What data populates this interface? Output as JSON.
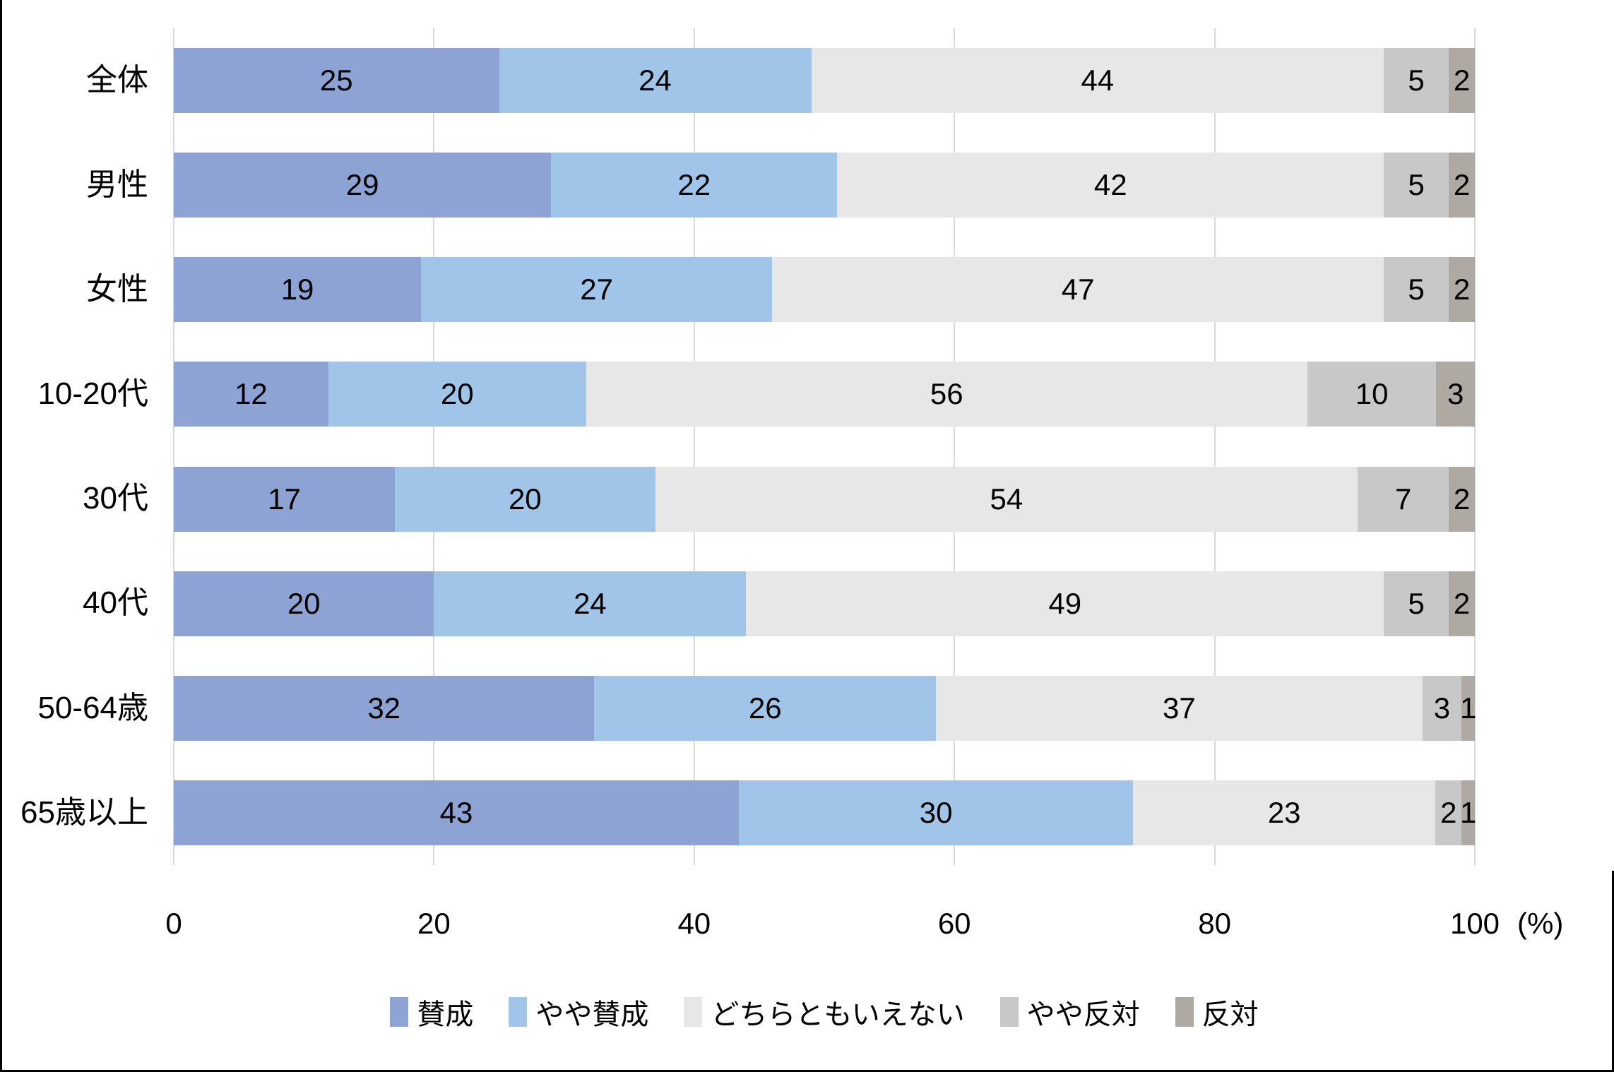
{
  "chart_data": {
    "type": "bar",
    "variant": "horizontal-stacked",
    "title": "",
    "categories": [
      "全体",
      "男性",
      "女性",
      "10-20代",
      "30代",
      "40代",
      "50-64歳",
      "65歳以上"
    ],
    "series": [
      {
        "name": "賛成",
        "color": "#8DA3D4",
        "values": [
          25,
          29,
          19,
          12,
          17,
          20,
          32,
          43
        ]
      },
      {
        "name": "やや賛成",
        "color": "#A1C5E8",
        "values": [
          24,
          22,
          27,
          20,
          20,
          24,
          26,
          30
        ]
      },
      {
        "name": "どちらともいえない",
        "color": "#E8E7E7",
        "values": [
          44,
          42,
          47,
          56,
          54,
          49,
          37,
          23
        ]
      },
      {
        "name": "やや反対",
        "color": "#C9C8C8",
        "values": [
          5,
          5,
          5,
          10,
          7,
          5,
          3,
          2
        ]
      },
      {
        "name": "反対",
        "color": "#AFA9A4",
        "values": [
          2,
          2,
          2,
          3,
          2,
          2,
          1,
          1
        ]
      }
    ],
    "x_axis": {
      "ticks": [
        "0",
        "20",
        "40",
        "60",
        "80",
        "100"
      ],
      "unit_label": "(%)",
      "range": [
        0,
        100
      ]
    },
    "legend": [
      "賛成",
      "やや賛成",
      "どちらともいえない",
      "やや反対",
      "反対"
    ],
    "legend_position": "bottom",
    "grid": true,
    "gridline_color": "#D9D9D9",
    "bar_label_color": "#000000",
    "text_color": "#000000",
    "frame_color": "#000000"
  }
}
